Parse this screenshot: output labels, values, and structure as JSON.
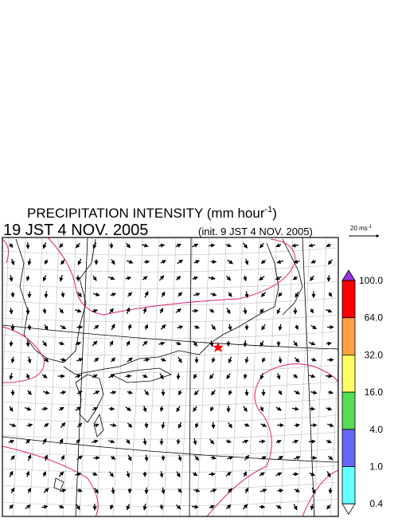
{
  "header": {
    "title": "PRECIPITATION INTENSITY (mm hour",
    "title_sup": "-1",
    "title_end": ")",
    "time": "19 JST 4 NOV. 2005",
    "init": "(init. 9 JST 4 NOV. 2005)"
  },
  "reference_vector": {
    "label": "20 ms",
    "label_sup": "-1"
  },
  "legend": {
    "levels": [
      {
        "label": "100.0",
        "color": "#ff0000"
      },
      {
        "label": "64.0",
        "color": "#ffa040"
      },
      {
        "label": "32.0",
        "color": "#ffff66"
      },
      {
        "label": "16.0",
        "color": "#55dd55"
      },
      {
        "label": "4.0",
        "color": "#6666ff"
      },
      {
        "label": "1.0",
        "color": "#66ffff"
      },
      {
        "label": "0.4",
        "color": "#ffffff"
      }
    ],
    "over_color": "#9933dd"
  }
}
